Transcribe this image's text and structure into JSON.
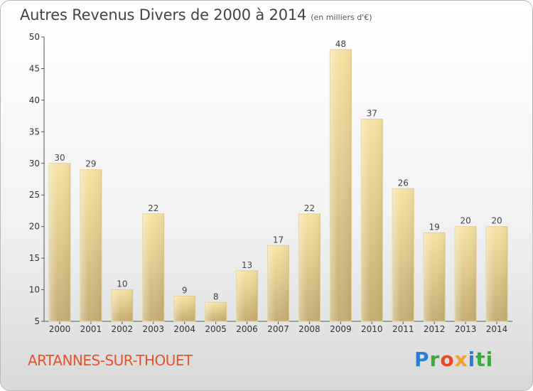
{
  "chart_data": {
    "type": "bar",
    "title": "Autres Revenus Divers de 2000 à 2014",
    "subtitle": "(en milliers d'€)",
    "categories": [
      "2000",
      "2001",
      "2002",
      "2003",
      "2004",
      "2005",
      "2006",
      "2007",
      "2008",
      "2009",
      "2010",
      "2011",
      "2012",
      "2013",
      "2014"
    ],
    "values": [
      30,
      29,
      10,
      22,
      9,
      8,
      13,
      17,
      22,
      48,
      37,
      26,
      19,
      20,
      20
    ],
    "ylim": [
      5,
      50
    ],
    "yticks": [
      5,
      10,
      15,
      20,
      25,
      30,
      35,
      40,
      45,
      50
    ],
    "grid": false,
    "bar_color": "#e8cf8c"
  },
  "footer": {
    "town": "ARTANNES-SUR-THOUET",
    "logo": [
      "P",
      "r",
      "o",
      "x",
      "i",
      "ti"
    ]
  }
}
